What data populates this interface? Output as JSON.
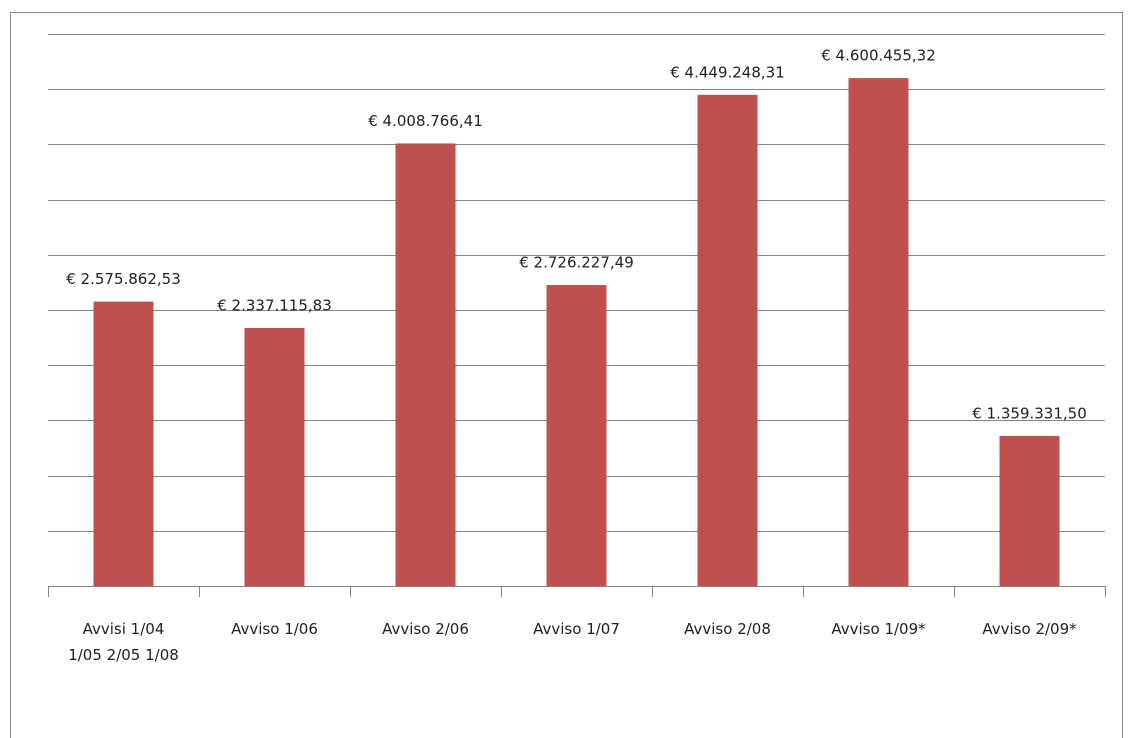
{
  "chart_data": {
    "type": "bar",
    "categories": [
      "Avvisi 1/04 1/05 2/05 1/08",
      "Avviso 1/06",
      "Avviso 2/06",
      "Avviso 1/07",
      "Avviso 2/08",
      "Avviso 1/09*",
      "Avviso 2/09*"
    ],
    "values": [
      2575862.53,
      2337115.83,
      4008766.41,
      2726227.49,
      4449248.31,
      4600455.32,
      1359331.5
    ],
    "value_labels": [
      "€ 2.575.862,53",
      "€ 2.337.115,83",
      "€ 4.008.766,41",
      "€ 2.726.227,49",
      "€ 4.449.248,31",
      "€ 4.600.455,32",
      "€ 1.359.331,50"
    ],
    "color": "#c0504d",
    "ylim": [
      0,
      5000000
    ],
    "yticks": [
      0,
      500000,
      1000000,
      1500000,
      2000000,
      2500000,
      3000000,
      3500000,
      4000000,
      4500000,
      5000000
    ],
    "grid": true
  }
}
